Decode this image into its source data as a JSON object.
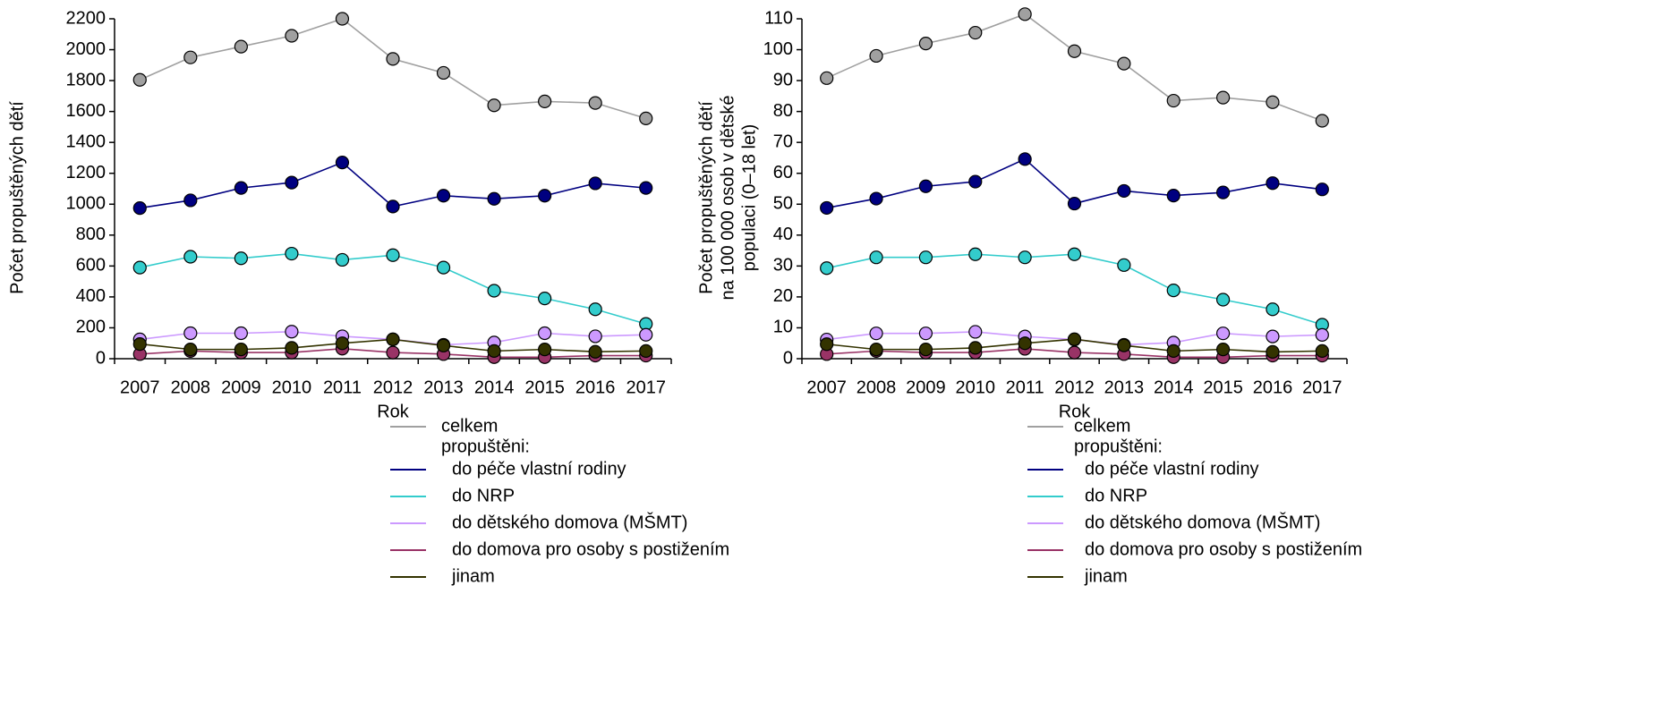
{
  "chart_data": [
    {
      "type": "line",
      "ylabel": [
        "Počet propuštěných dětí"
      ],
      "xlabel": "Rok",
      "categories": [
        "2007",
        "2008",
        "2009",
        "2010",
        "2011",
        "2012",
        "2013",
        "2014",
        "2015",
        "2016",
        "2017"
      ],
      "ylim": [
        0,
        2200
      ],
      "yticks": [
        0,
        200,
        400,
        600,
        800,
        1000,
        1200,
        1400,
        1600,
        1800,
        2000,
        2200
      ],
      "legend_group_label": "propuštěni:",
      "series": [
        {
          "name": "celkem",
          "color": "#a0a0a0",
          "values": [
            1805,
            1950,
            2020,
            2090,
            2200,
            1940,
            1850,
            1640,
            1665,
            1655,
            1555
          ]
        },
        {
          "name": "do péče vlastní rodiny",
          "color": "#000080",
          "values": [
            975,
            1025,
            1105,
            1140,
            1270,
            985,
            1055,
            1035,
            1055,
            1135,
            1105
          ]
        },
        {
          "name": "do NRP",
          "color": "#33cccc",
          "values": [
            590,
            660,
            650,
            680,
            640,
            670,
            590,
            440,
            390,
            320,
            225
          ]
        },
        {
          "name": "do dětského domova (MŠMT)",
          "color": "#cc99ff",
          "values": [
            125,
            165,
            165,
            175,
            145,
            125,
            90,
            105,
            165,
            145,
            155
          ]
        },
        {
          "name": "do domova pro osoby s postižením",
          "color": "#993366",
          "values": [
            30,
            50,
            40,
            40,
            65,
            40,
            30,
            10,
            10,
            20,
            20
          ]
        },
        {
          "name": "jinam",
          "color": "#333300",
          "values": [
            95,
            60,
            60,
            70,
            100,
            125,
            85,
            50,
            60,
            45,
            50
          ]
        }
      ]
    },
    {
      "type": "line",
      "ylabel": [
        "Počet propuštěných  dětí",
        "na 100 000 osob v dětské",
        "populaci (0–18 let)"
      ],
      "xlabel": "Rok",
      "categories": [
        "2007",
        "2008",
        "2009",
        "2010",
        "2011",
        "2012",
        "2013",
        "2014",
        "2015",
        "2016",
        "2017"
      ],
      "ylim": [
        0,
        110
      ],
      "yticks": [
        0,
        10,
        20,
        30,
        40,
        50,
        60,
        70,
        80,
        90,
        100,
        110
      ],
      "legend_group_label": "propuštěni:",
      "series": [
        {
          "name": "celkem",
          "color": "#a0a0a0",
          "values": [
            90.8,
            98,
            102,
            105.5,
            111.5,
            99.5,
            95.5,
            83.5,
            84.5,
            83,
            77
          ]
        },
        {
          "name": "do péče vlastní rodiny",
          "color": "#000080",
          "values": [
            48.8,
            51.8,
            55.8,
            57.3,
            64.6,
            50.2,
            54.3,
            52.8,
            53.8,
            56.8,
            54.8
          ]
        },
        {
          "name": "do NRP",
          "color": "#33cccc",
          "values": [
            29.3,
            32.8,
            32.8,
            33.8,
            32.8,
            33.8,
            30.3,
            22.1,
            19.1,
            16,
            11
          ]
        },
        {
          "name": "do dětského domova (MŠMT)",
          "color": "#cc99ff",
          "values": [
            6.2,
            8.2,
            8.2,
            8.7,
            7.2,
            6.2,
            4.5,
            5.2,
            8.2,
            7.2,
            7.7
          ]
        },
        {
          "name": "do domova pro osoby s postižením",
          "color": "#993366",
          "values": [
            1.5,
            2.5,
            2,
            2,
            3.2,
            2,
            1.5,
            0.5,
            0.5,
            1,
            1
          ]
        },
        {
          "name": "jinam",
          "color": "#333300",
          "values": [
            4.7,
            3,
            3,
            3.5,
            5,
            6.3,
            4.3,
            2.5,
            3,
            2.2,
            2.5
          ]
        }
      ]
    }
  ]
}
